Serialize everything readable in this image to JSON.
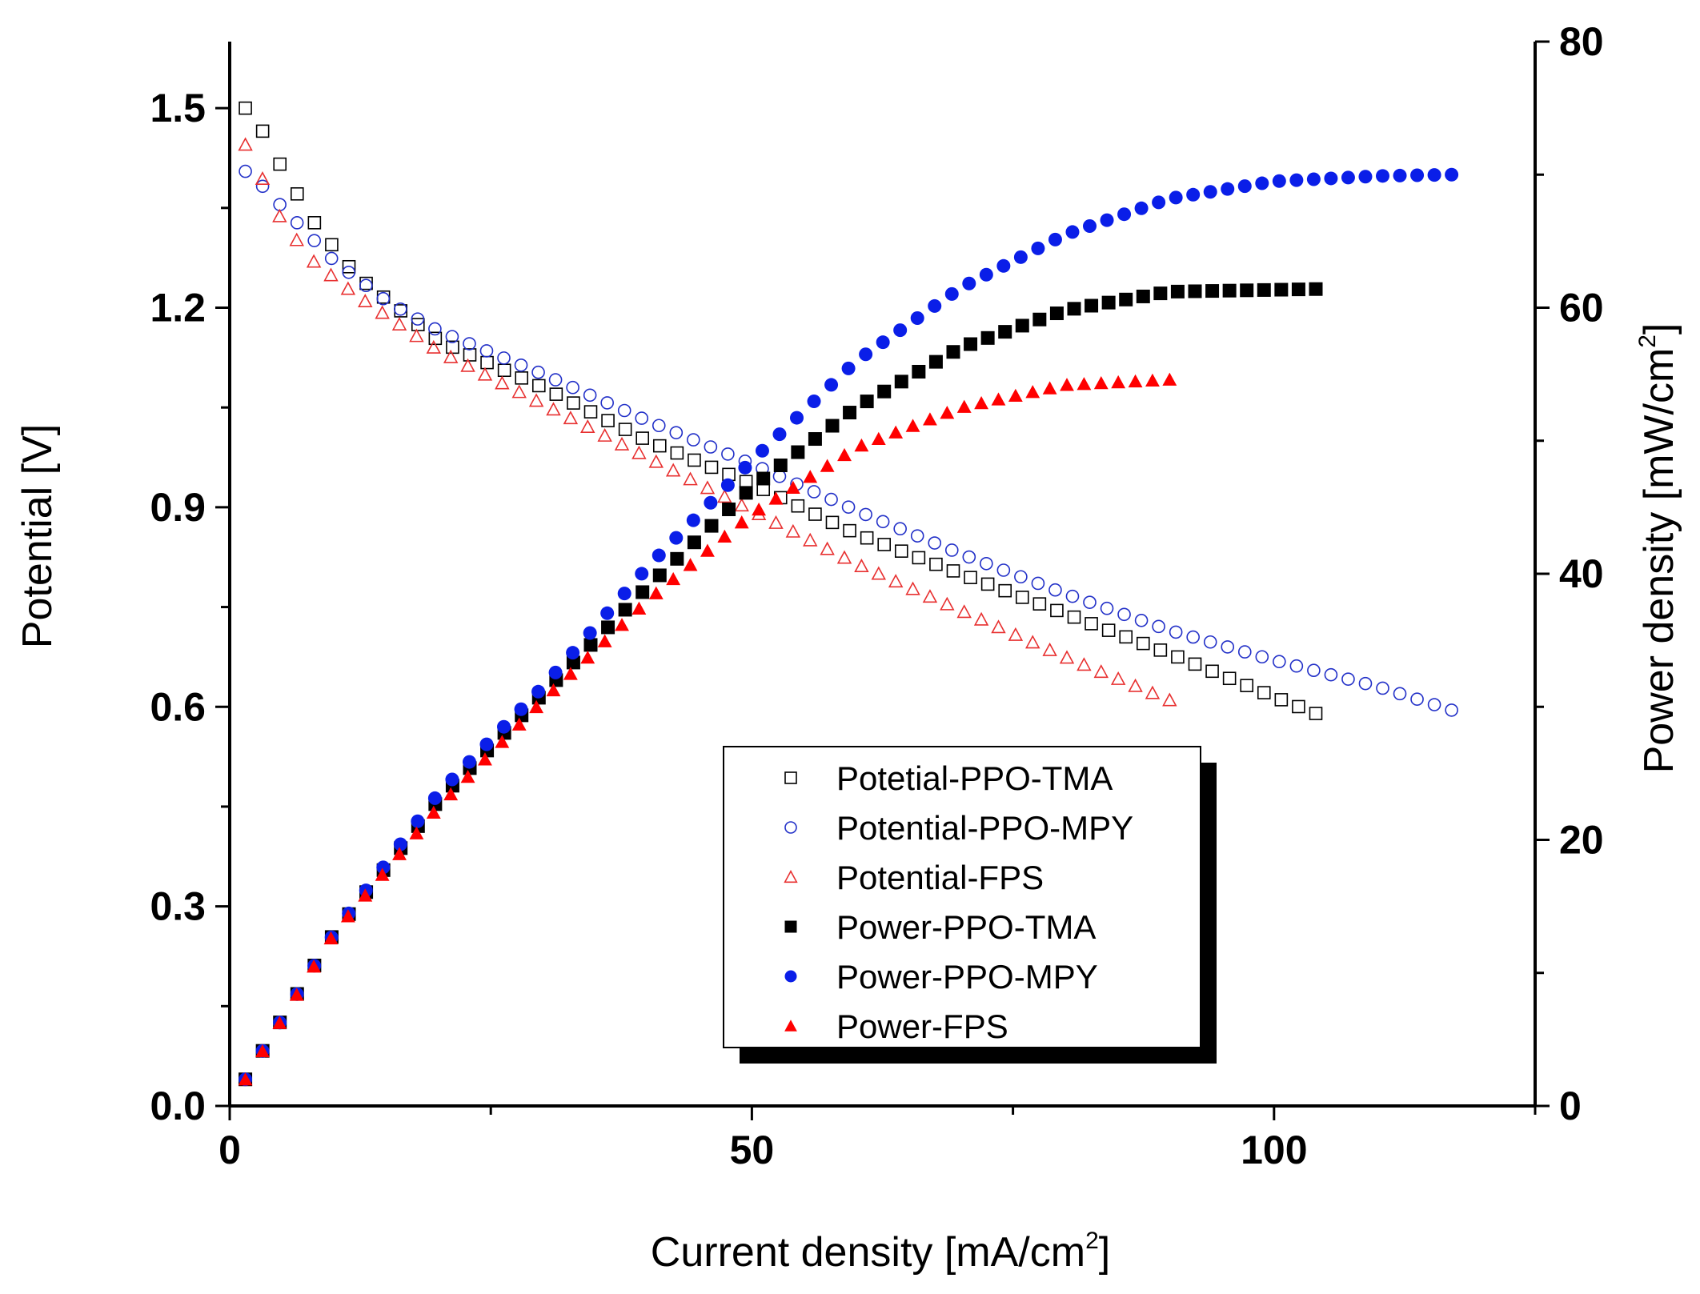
{
  "chart_data": {
    "type": "scatter",
    "title": "",
    "xlabel": "Current density [mA/cm",
    "xlabel_sup": "2",
    "xlabel_end": "]",
    "ylabel": "Potential [V]",
    "y2label": "Power density [mW/cm",
    "y2label_sup": "2",
    "y2label_end": "]",
    "xlim": [
      0,
      125
    ],
    "ylim": [
      0,
      1.6
    ],
    "y2lim": [
      0,
      80
    ],
    "xticks": [
      0,
      50,
      100
    ],
    "xtick_labels": [
      "0",
      "50",
      "100"
    ],
    "yticks": [
      0,
      0.3,
      0.6,
      0.9,
      1.2,
      1.5
    ],
    "ytick_labels": [
      "0.0",
      "0.3",
      "0.6",
      "0.9",
      "1.2",
      "1.5"
    ],
    "y2ticks": [
      0,
      20,
      40,
      60,
      80
    ],
    "y2tick_labels": [
      "0",
      "20",
      "40",
      "60",
      "80"
    ],
    "legend_position": "lower-center",
    "series": [
      {
        "name": "Potetial-PPO-TMA",
        "axis": "left",
        "marker": "square",
        "filled": false,
        "color": "#000000",
        "x_start": 1.5,
        "x_end": 104,
        "n": 63,
        "curve": [
          [
            1.5,
            1.5
          ],
          [
            3,
            1.47
          ],
          [
            5,
            1.41
          ],
          [
            8,
            1.33
          ],
          [
            12,
            1.25
          ],
          [
            20,
            1.15
          ],
          [
            30,
            1.08
          ],
          [
            40,
            1.0
          ],
          [
            50,
            0.935
          ],
          [
            60,
            0.86
          ],
          [
            70,
            0.8
          ],
          [
            80,
            0.74
          ],
          [
            90,
            0.68
          ],
          [
            100,
            0.615
          ],
          [
            104,
            0.59
          ]
        ]
      },
      {
        "name": "Potential-PPO-MPY",
        "axis": "left",
        "marker": "circle",
        "filled": false,
        "color": "#2230c8",
        "x_start": 1.5,
        "x_end": 117,
        "n": 71,
        "curve": [
          [
            1.5,
            1.405
          ],
          [
            3,
            1.385
          ],
          [
            6,
            1.335
          ],
          [
            10,
            1.27
          ],
          [
            15,
            1.21
          ],
          [
            20,
            1.165
          ],
          [
            30,
            1.1
          ],
          [
            40,
            1.03
          ],
          [
            50,
            0.965
          ],
          [
            60,
            0.895
          ],
          [
            70,
            0.83
          ],
          [
            80,
            0.77
          ],
          [
            90,
            0.715
          ],
          [
            100,
            0.67
          ],
          [
            110,
            0.63
          ],
          [
            117,
            0.595
          ]
        ]
      },
      {
        "name": "Potential-FPS",
        "axis": "left",
        "marker": "triangle",
        "filled": false,
        "color": "#e83030",
        "x_start": 1.5,
        "x_end": 90,
        "n": 55,
        "curve": [
          [
            1.5,
            1.445
          ],
          [
            3,
            1.4
          ],
          [
            4,
            1.355
          ],
          [
            6,
            1.31
          ],
          [
            8,
            1.27
          ],
          [
            12,
            1.22
          ],
          [
            20,
            1.135
          ],
          [
            30,
            1.055
          ],
          [
            40,
            0.975
          ],
          [
            50,
            0.895
          ],
          [
            60,
            0.815
          ],
          [
            70,
            0.745
          ],
          [
            80,
            0.675
          ],
          [
            90,
            0.61
          ]
        ]
      },
      {
        "name": "Power-PPO-TMA",
        "axis": "right",
        "marker": "square",
        "filled": true,
        "color": "#000000",
        "x_start": 1.5,
        "x_end": 104,
        "n": 63,
        "curve": [
          [
            1.5,
            2
          ],
          [
            10,
            13
          ],
          [
            20,
            23
          ],
          [
            30,
            31
          ],
          [
            40,
            39
          ],
          [
            50,
            46.5
          ],
          [
            60,
            52.5
          ],
          [
            70,
            57
          ],
          [
            80,
            59.8
          ],
          [
            90,
            61.2
          ],
          [
            104,
            61.4
          ]
        ]
      },
      {
        "name": "Power-PPO-MPY",
        "axis": "right",
        "marker": "circle",
        "filled": true,
        "color": "#0a1ee8",
        "x_start": 1.5,
        "x_end": 117,
        "n": 71,
        "curve": [
          [
            1.5,
            2
          ],
          [
            10,
            13
          ],
          [
            20,
            23.5
          ],
          [
            30,
            31.5
          ],
          [
            40,
            40.5
          ],
          [
            50,
            48.5
          ],
          [
            60,
            56
          ],
          [
            70,
            61.5
          ],
          [
            80,
            65.5
          ],
          [
            90,
            68.2
          ],
          [
            100,
            69.5
          ],
          [
            110,
            69.9
          ],
          [
            117,
            70
          ]
        ]
      },
      {
        "name": "Power-FPS",
        "axis": "right",
        "marker": "triangle",
        "filled": true,
        "color": "#ff0000",
        "x_start": 1.5,
        "x_end": 90,
        "n": 55,
        "curve": [
          [
            1.5,
            2
          ],
          [
            10,
            13
          ],
          [
            20,
            22.5
          ],
          [
            30,
            30.5
          ],
          [
            40,
            38
          ],
          [
            50,
            44.5
          ],
          [
            60,
            49.5
          ],
          [
            70,
            52.5
          ],
          [
            80,
            54.2
          ],
          [
            90,
            54.6
          ]
        ]
      }
    ]
  }
}
